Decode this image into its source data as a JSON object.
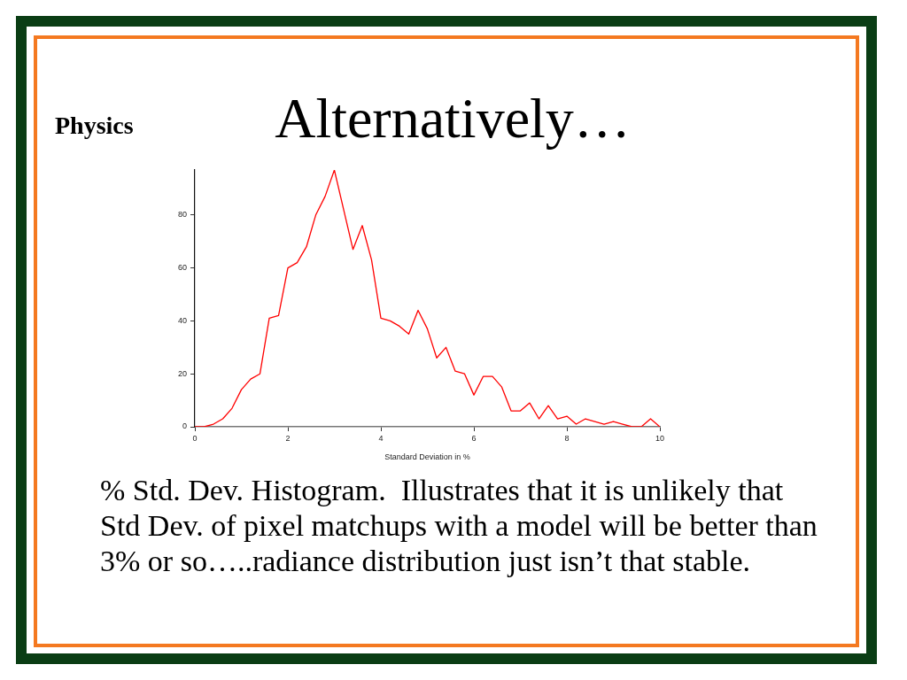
{
  "chart_data": {
    "type": "line",
    "title": "Alternatively…",
    "xlabel": "Standard Deviation in %",
    "annotations": [
      "Physics",
      "% Std. Dev. Histogram.  Illustrates that it is unlikely that Std Dev. of pixel matchups with a model will be better than 3% or so…..radiance distribution just isn’t that stable."
    ],
    "x": [
      0,
      0.2,
      0.4,
      0.6,
      0.8,
      1.0,
      1.2,
      1.4,
      1.6,
      1.8,
      2.0,
      2.2,
      2.4,
      2.6,
      2.8,
      3.0,
      3.2,
      3.4,
      3.6,
      3.8,
      4.0,
      4.2,
      4.4,
      4.6,
      4.8,
      5.0,
      5.2,
      5.4,
      5.6,
      5.8,
      6.0,
      6.2,
      6.4,
      6.6,
      6.8,
      7.0,
      7.2,
      7.4,
      7.6,
      7.8,
      8.0,
      8.2,
      8.4,
      8.6,
      8.8,
      9.0,
      9.2,
      9.4,
      9.6,
      9.8,
      10.0
    ],
    "series": [
      {
        "color": "#ff0000",
        "values": [
          0,
          0,
          1,
          3,
          7,
          14,
          18,
          20,
          41,
          42,
          60,
          62,
          68,
          80,
          87,
          97,
          82,
          67,
          76,
          63,
          41,
          40,
          38,
          35,
          44,
          37,
          26,
          30,
          21,
          20,
          12,
          19,
          19,
          15,
          6,
          6,
          9,
          3,
          8,
          3,
          4,
          1,
          3,
          2,
          1,
          2,
          1,
          0,
          0,
          3,
          0
        ]
      }
    ],
    "xlim": [
      0,
      10
    ],
    "xticks": [
      0,
      2,
      4,
      6,
      8,
      10
    ],
    "ylim": [
      0,
      97
    ],
    "yticks": [
      0,
      20,
      40,
      60,
      80
    ],
    "grid": false,
    "legend": false,
    "marker": "none",
    "line_style": "solid"
  }
}
